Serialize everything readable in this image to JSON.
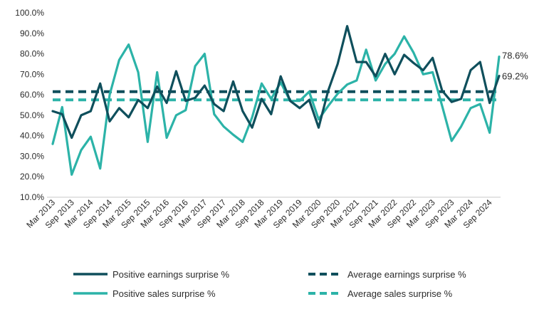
{
  "colors": {
    "earnings": "#0f4f5c",
    "sales": "#2cb3a8",
    "axis": "#c8c8c8",
    "text": "#2b2b2b"
  },
  "chart_data": {
    "type": "line",
    "title": "",
    "xlabel": "",
    "ylabel": "",
    "ylim": [
      10,
      100
    ],
    "y_ticks": [
      "10.0%",
      "20.0%",
      "30.0%",
      "40.0%",
      "50.0%",
      "60.0%",
      "70.0%",
      "80.0%",
      "90.0%",
      "100.0%"
    ],
    "x_tick_labels": [
      "Mar 2013",
      "Sep 2013",
      "Mar 2014",
      "Sep 2014",
      "Mar 2015",
      "Sep 2015",
      "Mar 2016",
      "Sep 2016",
      "Mar 2017",
      "Sep 2017",
      "Mar 2018",
      "Sep 2018",
      "Mar 2019",
      "Sep 2019",
      "Mar 2020",
      "Sep 2020",
      "Mar 2021",
      "Sep 2021",
      "Mar 2022",
      "Sep 2022",
      "Mar 2023",
      "Sep 2023",
      "Mar 2024",
      "Sep 2024"
    ],
    "x": [
      "Mar 2013",
      "Jun 2013",
      "Sep 2013",
      "Dec 2013",
      "Mar 2014",
      "Jun 2014",
      "Sep 2014",
      "Dec 2014",
      "Mar 2015",
      "Jun 2015",
      "Sep 2015",
      "Dec 2015",
      "Mar 2016",
      "Jun 2016",
      "Sep 2016",
      "Dec 2016",
      "Mar 2017",
      "Jun 2017",
      "Sep 2017",
      "Dec 2017",
      "Mar 2018",
      "Jun 2018",
      "Sep 2018",
      "Dec 2018",
      "Mar 2019",
      "Jun 2019",
      "Sep 2019",
      "Dec 2019",
      "Mar 2020",
      "Jun 2020",
      "Sep 2020",
      "Dec 2020",
      "Mar 2021",
      "Jun 2021",
      "Sep 2021",
      "Dec 2021",
      "Mar 2022",
      "Jun 2022",
      "Sep 2022",
      "Dec 2022",
      "Mar 2023",
      "Jun 2023",
      "Sep 2023",
      "Dec 2023",
      "Mar 2024",
      "Jun 2024",
      "Sep 2024",
      "Dec 2024"
    ],
    "series": [
      {
        "name": "Positive earnings surprise %",
        "style": "solid",
        "color": "#0f4f5c",
        "values": [
          52,
          50.5,
          39,
          50,
          52,
          65.5,
          47,
          53.5,
          49,
          57.5,
          53.5,
          64,
          56,
          71.5,
          57,
          58.5,
          64.5,
          55.5,
          52,
          66.5,
          52,
          44,
          58,
          50.5,
          69,
          57,
          53.5,
          57.5,
          44,
          62,
          75,
          93.5,
          76,
          76,
          69,
          80,
          70,
          79.5,
          75.5,
          72,
          78,
          62,
          56.5,
          58,
          72,
          76,
          56,
          69.2
        ]
      },
      {
        "name": "Positive sales surprise %",
        "style": "solid",
        "color": "#2cb3a8",
        "values": [
          36,
          54,
          21,
          33,
          39.5,
          24,
          60,
          77,
          84.5,
          71,
          37,
          71,
          39,
          50,
          52.5,
          74,
          80,
          50.5,
          44.5,
          40.5,
          37,
          49,
          65.5,
          58,
          66,
          57,
          57,
          61.5,
          48,
          54.5,
          60.5,
          65,
          67,
          82,
          67,
          75,
          80,
          88.5,
          80.5,
          70,
          71,
          54.5,
          37.5,
          44.5,
          53.5,
          55.5,
          41.5,
          78.6
        ]
      },
      {
        "name": "Average earnings surprise %",
        "style": "dashed",
        "color": "#0f4f5c",
        "value": 61.5
      },
      {
        "name": "Average sales surprise %",
        "style": "dashed",
        "color": "#2cb3a8",
        "value": 57.5
      }
    ],
    "end_labels": [
      {
        "series": "Positive sales surprise %",
        "text": "78.6%"
      },
      {
        "series": "Positive earnings surprise %",
        "text": "69.2%"
      }
    ],
    "legend": {
      "placement": "bottom",
      "items": [
        {
          "label": "Positive earnings surprise %",
          "color": "#0f4f5c",
          "style": "solid"
        },
        {
          "label": "Average earnings surprise %",
          "color": "#0f4f5c",
          "style": "dashed"
        },
        {
          "label": "Positive sales surprise %",
          "color": "#2cb3a8",
          "style": "solid"
        },
        {
          "label": "Average sales surprise %",
          "color": "#2cb3a8",
          "style": "dashed"
        }
      ]
    },
    "grid": false
  }
}
